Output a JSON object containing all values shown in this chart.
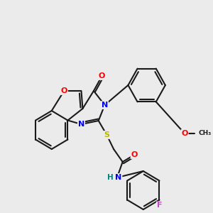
{
  "background_color": "#ebebeb",
  "bond_color": "#1a1a1a",
  "atom_colors": {
    "O": "#ff0000",
    "N": "#0000ff",
    "S": "#b8b800",
    "F": "#cc44cc",
    "H": "#008080",
    "C": "#1a1a1a"
  },
  "figsize": [
    3.0,
    3.0
  ],
  "dpi": 100
}
